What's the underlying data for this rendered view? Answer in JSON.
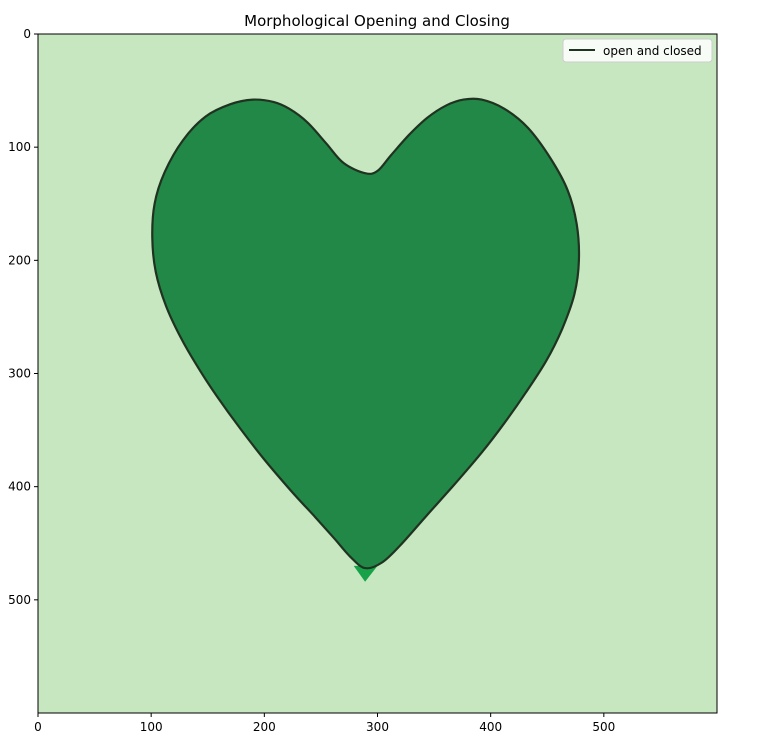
{
  "chart_data": {
    "type": "image",
    "title": "Morphological Opening and Closing",
    "xlabel": "",
    "ylabel": "",
    "xlim": [
      0,
      600
    ],
    "ylim": [
      600,
      0
    ],
    "x_ticks": [
      0,
      100,
      200,
      300,
      400,
      500
    ],
    "y_ticks": [
      0,
      100,
      200,
      300,
      400,
      500
    ],
    "grid": false,
    "legend": {
      "position": "top-right",
      "entries": [
        "open and closed"
      ]
    },
    "series": [
      {
        "name": "open and closed",
        "kind": "contour",
        "color": "#1f3320",
        "points": [
          [
            289,
            123
          ],
          [
            270,
            114
          ],
          [
            255,
            97
          ],
          [
            238,
            78
          ],
          [
            222,
            66
          ],
          [
            208,
            60
          ],
          [
            190,
            58
          ],
          [
            170,
            62
          ],
          [
            148,
            73
          ],
          [
            128,
            94
          ],
          [
            112,
            122
          ],
          [
            103,
            150
          ],
          [
            101,
            180
          ],
          [
            104,
            210
          ],
          [
            113,
            240
          ],
          [
            126,
            268
          ],
          [
            141,
            294
          ],
          [
            158,
            320
          ],
          [
            179,
            349
          ],
          [
            200,
            376
          ],
          [
            223,
            403
          ],
          [
            245,
            427
          ],
          [
            262,
            446
          ],
          [
            276,
            462
          ],
          [
            289,
            472
          ],
          [
            304,
            467
          ],
          [
            320,
            452
          ],
          [
            343,
            426
          ],
          [
            368,
            398
          ],
          [
            392,
            370
          ],
          [
            412,
            344
          ],
          [
            431,
            317
          ],
          [
            449,
            289
          ],
          [
            463,
            261
          ],
          [
            474,
            230
          ],
          [
            478,
            200
          ],
          [
            476,
            168
          ],
          [
            468,
            138
          ],
          [
            453,
            110
          ],
          [
            433,
            83
          ],
          [
            412,
            66
          ],
          [
            392,
            58
          ],
          [
            376,
            58
          ],
          [
            361,
            63
          ],
          [
            344,
            74
          ],
          [
            328,
            89
          ],
          [
            312,
            107
          ],
          [
            300,
            121
          ]
        ]
      }
    ],
    "colors": {
      "background": "#c7e7c0",
      "shape": "#228847",
      "notch_light": "#d6eed0",
      "tip_dark": "#17a24a"
    }
  }
}
